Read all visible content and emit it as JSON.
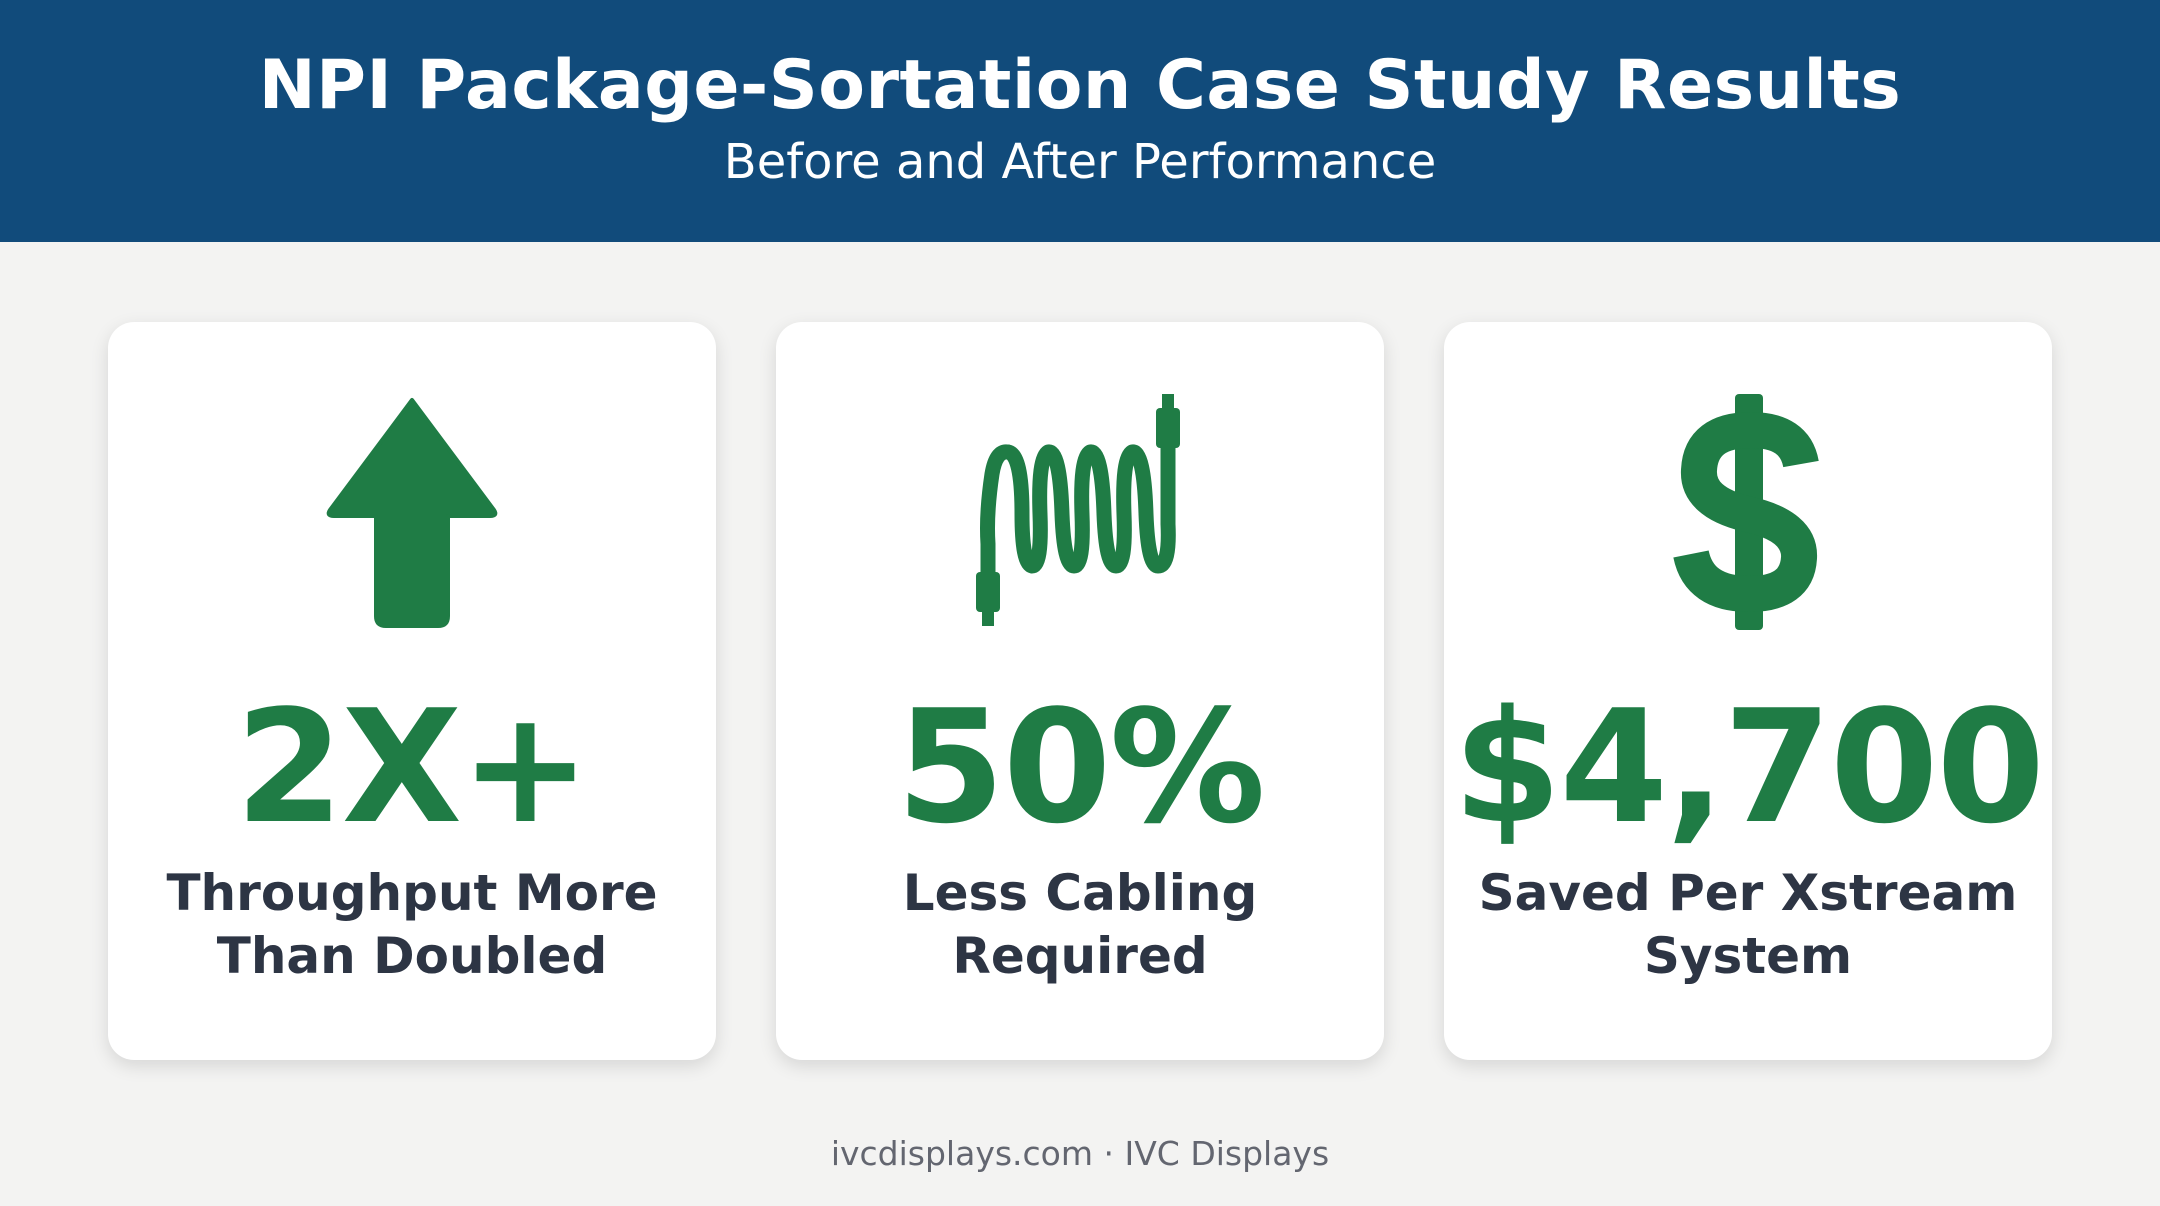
{
  "header": {
    "title": "NPI Package-Sortation Case Study Results",
    "subtitle": "Before and After Performance",
    "background_color": "#114b7b"
  },
  "cards": [
    {
      "icon": "up-arrow-icon",
      "metric": "2X+",
      "label": "Throughput More Than Doubled"
    },
    {
      "icon": "coiled-cable-icon",
      "metric": "50%",
      "label": "Less Cabling Required"
    },
    {
      "icon": "dollar-sign-icon",
      "metric": "$4,700",
      "label": "Saved Per Xstream System"
    }
  ],
  "accent_color": "#1f7c45",
  "footer": {
    "text": "ivcdisplays.com · IVC Displays"
  }
}
